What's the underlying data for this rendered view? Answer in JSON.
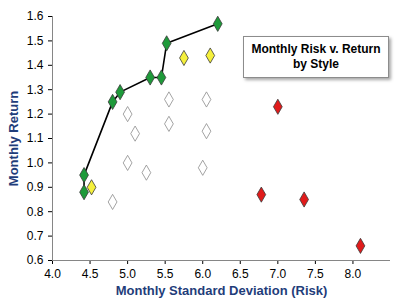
{
  "chart_data": {
    "type": "scatter",
    "title": "Monthly Risk v. Return by Style",
    "x_label": "Monthly Standard Deviation (Risk)",
    "y_label": "Monthly Return",
    "xlim": [
      4.0,
      8.5
    ],
    "xticks": [
      {
        "value": 4,
        "label": "4.0"
      },
      4.5,
      {
        "value": 5,
        "label": "5.0"
      },
      5.5,
      {
        "value": 6,
        "label": "6.0"
      },
      6.5,
      {
        "value": 7,
        "label": "7.0"
      },
      7.5,
      {
        "value": 8,
        "label": "8.0"
      }
    ],
    "ylim": [
      0.6,
      1.6
    ],
    "yticks": [
      0.6,
      0.7,
      0.8,
      0.9,
      {
        "value": 1,
        "label": "1.0"
      },
      1.1,
      1.2,
      1.3,
      1.4,
      1.5,
      1.6
    ],
    "grid": false,
    "series": [
      {
        "type": "line",
        "marker": "diamond",
        "color": "#1e9a3a",
        "x": [
          4.42,
          4.42,
          4.8,
          4.9,
          5.3,
          5.45,
          5.52,
          6.2
        ],
        "values": [
          0.88,
          0.95,
          1.25,
          1.29,
          1.35,
          1.35,
          1.49,
          1.57
        ]
      },
      {
        "type": "scatter",
        "marker": "diamond",
        "color": "#f5f03c",
        "x": [
          4.52,
          5.75,
          6.1
        ],
        "values": [
          0.9,
          1.43,
          1.44
        ]
      },
      {
        "type": "scatter",
        "marker": "diamond",
        "color": "#ffffff",
        "x": [
          4.8,
          5.0,
          5.1,
          5.0,
          5.25,
          5.55,
          5.55,
          6.05,
          6.05,
          6.0
        ],
        "values": [
          0.84,
          1.2,
          1.12,
          1.0,
          0.96,
          1.26,
          1.16,
          1.26,
          1.13,
          0.98
        ]
      },
      {
        "type": "scatter",
        "marker": "diamond",
        "color": "#e01b1b",
        "x": [
          6.78,
          7.0,
          7.35,
          8.1
        ],
        "values": [
          0.87,
          1.23,
          0.85,
          0.66
        ]
      }
    ]
  }
}
